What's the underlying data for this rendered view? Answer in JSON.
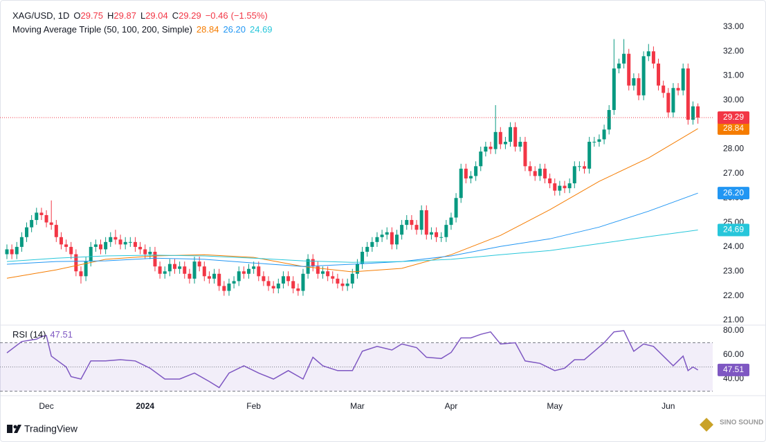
{
  "chart_data": {
    "type": "candlestick",
    "title": "XAG/USD, 1D",
    "ohlc_legend": [
      {
        "label": "O",
        "value": 29.75
      },
      {
        "label": "H",
        "value": 29.87
      },
      {
        "label": "L",
        "value": 29.04
      },
      {
        "label": "C",
        "value": 29.29
      }
    ],
    "change": {
      "value": -0.46,
      "label": "−0.46"
    },
    "change_percent": {
      "value": -1.55,
      "label": "(−1.55%)"
    },
    "up_color": "#089981",
    "down_color": "#f23645",
    "open": [
      23.7,
      23.9,
      23.7,
      24.0,
      24.4,
      24.8,
      25.1,
      25.4,
      25.3,
      25.0,
      24.9,
      24.4,
      24.1,
      24.0,
      23.7,
      23.0,
      22.8,
      23.4,
      24.0,
      24.1,
      23.9,
      24.2,
      24.4,
      24.3,
      24.1,
      24.2,
      24.2,
      24.0,
      23.9,
      23.7,
      23.8,
      23.2,
      22.9,
      23.0,
      23.3,
      23.1,
      23.2,
      22.9,
      22.7,
      23.4,
      23.2,
      22.8,
      22.7,
      22.9,
      22.4,
      22.2,
      22.5,
      22.6,
      23.0,
      22.9,
      23.1,
      23.2,
      22.8,
      22.6,
      22.4,
      22.3,
      22.5,
      22.8,
      22.6,
      22.3,
      22.2,
      22.9,
      23.5,
      23.2,
      22.9,
      23.0,
      22.8,
      22.7,
      22.5,
      22.4,
      22.5,
      22.9,
      23.3,
      23.8,
      24.0,
      24.2,
      24.4,
      24.5,
      24.6,
      24.1,
      24.5,
      24.9,
      25.1,
      24.9,
      24.7,
      25.5,
      24.5,
      24.6,
      24.4,
      24.4,
      24.9,
      25.2,
      26.0,
      27.2,
      26.8,
      26.9,
      27.3,
      27.9,
      28.1,
      28.0,
      28.7,
      28.2,
      28.3,
      28.9,
      28.1,
      28.3,
      27.3,
      27.1,
      26.9,
      27.2,
      26.8,
      26.6,
      26.3,
      26.5,
      26.4,
      26.6,
      27.3,
      27.3,
      27.2,
      28.3,
      28.3,
      28.4,
      28.8,
      29.6,
      31.3,
      31.5,
      31.9,
      30.6,
      30.9,
      30.2,
      31.8,
      32.0,
      31.5,
      30.6,
      30.3,
      29.5,
      30.5,
      30.4,
      31.3,
      29.2,
      29.75
    ],
    "high": [
      24.1,
      24.1,
      24.2,
      24.6,
      25.0,
      25.3,
      25.6,
      25.6,
      25.5,
      25.9,
      25.1,
      24.6,
      24.3,
      24.2,
      23.9,
      23.2,
      23.6,
      24.2,
      24.3,
      24.3,
      24.4,
      24.6,
      24.7,
      24.5,
      24.4,
      24.4,
      24.4,
      24.2,
      24.1,
      24.0,
      24.0,
      23.4,
      23.2,
      23.5,
      23.5,
      23.4,
      23.4,
      23.1,
      23.6,
      23.6,
      23.4,
      23.0,
      23.1,
      23.1,
      22.6,
      22.7,
      22.8,
      23.2,
      23.2,
      23.3,
      23.4,
      23.4,
      23.0,
      22.8,
      22.6,
      22.7,
      23.0,
      23.0,
      22.8,
      22.5,
      23.1,
      23.7,
      23.7,
      23.4,
      23.2,
      23.2,
      23.0,
      22.9,
      22.7,
      22.7,
      23.1,
      23.5,
      24.0,
      24.2,
      24.4,
      24.6,
      24.7,
      24.8,
      24.8,
      24.7,
      25.1,
      25.3,
      25.3,
      25.1,
      25.7,
      25.7,
      24.8,
      24.8,
      24.6,
      25.1,
      25.4,
      26.2,
      27.4,
      27.4,
      27.1,
      27.5,
      28.1,
      28.3,
      28.3,
      29.8,
      28.9,
      28.5,
      29.1,
      29.1,
      28.5,
      28.5,
      27.5,
      27.3,
      27.4,
      27.4,
      27.0,
      26.8,
      26.7,
      26.7,
      26.8,
      27.5,
      27.5,
      27.5,
      28.5,
      28.5,
      28.6,
      29.0,
      29.8,
      32.5,
      31.7,
      32.5,
      32.1,
      31.1,
      31.1,
      32.0,
      32.3,
      32.2,
      31.7,
      30.8,
      30.5,
      30.7,
      30.7,
      31.5,
      31.5,
      29.95,
      29.87
    ],
    "low": [
      23.5,
      23.5,
      23.5,
      23.8,
      24.2,
      24.6,
      24.9,
      25.1,
      24.8,
      24.7,
      24.2,
      23.9,
      23.8,
      23.5,
      22.8,
      22.5,
      22.6,
      23.2,
      23.8,
      23.7,
      23.7,
      24.0,
      24.1,
      23.9,
      23.9,
      24.0,
      23.8,
      23.7,
      23.5,
      23.5,
      23.0,
      22.7,
      22.7,
      22.8,
      22.9,
      22.9,
      22.7,
      22.5,
      22.5,
      23.0,
      22.6,
      22.5,
      22.5,
      22.2,
      22.0,
      22.0,
      22.3,
      22.4,
      22.7,
      22.7,
      22.9,
      22.6,
      22.4,
      22.2,
      22.1,
      22.1,
      22.3,
      22.4,
      22.1,
      22.0,
      22.0,
      22.7,
      23.0,
      22.7,
      22.7,
      22.6,
      22.5,
      22.3,
      22.2,
      22.2,
      22.3,
      22.7,
      23.1,
      23.6,
      23.8,
      24.0,
      24.2,
      24.3,
      23.9,
      23.9,
      24.3,
      24.7,
      24.7,
      24.5,
      24.5,
      24.3,
      24.3,
      24.2,
      24.2,
      24.2,
      24.7,
      25.0,
      25.8,
      26.6,
      26.6,
      26.7,
      27.1,
      27.7,
      27.8,
      27.8,
      28.0,
      28.0,
      28.1,
      27.9,
      27.9,
      27.1,
      26.9,
      26.7,
      26.7,
      26.6,
      26.4,
      26.1,
      26.1,
      26.2,
      26.2,
      26.4,
      27.1,
      27.0,
      27.0,
      28.1,
      28.1,
      28.2,
      28.6,
      29.4,
      31.1,
      31.3,
      30.4,
      30.4,
      30.0,
      30.0,
      31.6,
      31.3,
      30.4,
      30.1,
      29.3,
      29.3,
      30.2,
      30.2,
      29.0,
      29.0,
      29.04
    ],
    "close": [
      23.9,
      23.7,
      24.0,
      24.4,
      24.8,
      25.1,
      25.4,
      25.3,
      25.0,
      24.9,
      24.4,
      24.1,
      24.0,
      23.7,
      23.0,
      22.8,
      23.4,
      24.0,
      24.1,
      23.9,
      24.2,
      24.4,
      24.3,
      24.1,
      24.2,
      24.2,
      24.0,
      23.9,
      23.7,
      23.8,
      23.2,
      22.9,
      23.0,
      23.3,
      23.1,
      23.2,
      22.9,
      22.7,
      23.4,
      23.2,
      22.8,
      22.7,
      22.9,
      22.4,
      22.2,
      22.5,
      22.6,
      23.0,
      22.9,
      23.1,
      23.2,
      22.8,
      22.6,
      22.4,
      22.3,
      22.5,
      22.8,
      22.6,
      22.3,
      22.2,
      22.9,
      23.5,
      23.2,
      22.9,
      23.0,
      22.8,
      22.7,
      22.5,
      22.4,
      22.5,
      22.9,
      23.3,
      23.8,
      24.0,
      24.2,
      24.4,
      24.5,
      24.6,
      24.1,
      24.5,
      24.9,
      25.1,
      24.9,
      24.7,
      25.5,
      24.5,
      24.6,
      24.4,
      24.4,
      24.9,
      25.2,
      26.0,
      27.2,
      26.8,
      26.9,
      27.3,
      27.9,
      28.1,
      28.0,
      28.7,
      28.2,
      28.3,
      28.9,
      28.1,
      28.3,
      27.3,
      27.1,
      26.9,
      27.2,
      26.8,
      26.6,
      26.3,
      26.5,
      26.4,
      26.6,
      27.3,
      27.3,
      27.2,
      28.3,
      28.3,
      28.4,
      28.8,
      29.6,
      31.3,
      31.5,
      31.9,
      30.6,
      30.9,
      30.2,
      31.8,
      32.0,
      31.5,
      30.6,
      30.3,
      29.5,
      30.5,
      30.4,
      31.3,
      29.2,
      29.75,
      29.29
    ],
    "last_price": {
      "value": 29.29,
      "color": "#f23645"
    },
    "xlim": [
      -1.4,
      143
    ],
    "xticks": [
      {
        "value": 8,
        "label": "Dec"
      },
      {
        "value": 28,
        "label": "2024"
      },
      {
        "value": 50,
        "label": "Feb"
      },
      {
        "value": 71,
        "label": "Mar"
      },
      {
        "value": 90,
        "label": "Apr"
      },
      {
        "value": 111,
        "label": "May"
      },
      {
        "value": 134,
        "label": "Jun"
      }
    ],
    "ylim": [
      20.8,
      34.1
    ],
    "yticks": [
      {
        "value": 21,
        "label": "21.00"
      },
      {
        "value": 22,
        "label": "22.00"
      },
      {
        "value": 23,
        "label": "23.00"
      },
      {
        "value": 24,
        "label": "24.00"
      },
      {
        "value": 25,
        "label": "25.00"
      },
      {
        "value": 26,
        "label": "26.00"
      },
      {
        "value": 27,
        "label": "27.00"
      },
      {
        "value": 28,
        "label": "28.00"
      },
      {
        "value": 29,
        "label": "29.00"
      },
      {
        "value": 30,
        "label": "30.00"
      },
      {
        "value": 31,
        "label": "31.00"
      },
      {
        "value": 32,
        "label": "32.00"
      },
      {
        "value": 33,
        "label": "33.00"
      }
    ],
    "ma": {
      "name": "Moving Average Triple (50, 100, 200, Simple)",
      "series": [
        {
          "color": "#f57c00",
          "x": [
            0,
            10,
            20,
            30,
            40,
            50,
            60,
            70,
            80,
            90,
            100,
            110,
            120,
            130,
            140
          ],
          "values": [
            22.72,
            23.06,
            23.49,
            23.63,
            23.68,
            23.57,
            23.2,
            22.98,
            23.12,
            23.68,
            24.47,
            25.52,
            26.68,
            27.64,
            28.84
          ],
          "last": 28.84
        },
        {
          "color": "#2196f3",
          "x": [
            0,
            10,
            20,
            30,
            40,
            50,
            60,
            70,
            80,
            90,
            100,
            110,
            120,
            130,
            140
          ],
          "values": [
            23.29,
            23.4,
            23.43,
            23.54,
            23.49,
            23.34,
            23.2,
            23.29,
            23.4,
            23.63,
            24.02,
            24.33,
            24.81,
            25.46,
            26.2
          ],
          "last": 26.2,
          "last_label": "26.20"
        },
        {
          "color": "#26c6da",
          "x": [
            0,
            10,
            20,
            30,
            40,
            50,
            60,
            70,
            80,
            90,
            100,
            110,
            120,
            130,
            140
          ],
          "values": [
            23.4,
            23.54,
            23.63,
            23.66,
            23.63,
            23.54,
            23.43,
            23.37,
            23.4,
            23.49,
            23.68,
            23.85,
            24.13,
            24.42,
            24.69
          ],
          "last": 24.69
        }
      ]
    },
    "rsi": {
      "name": "RSI (14)",
      "color": "#7e57c2",
      "x": [
        0,
        3,
        6,
        7,
        8,
        9,
        12,
        13,
        15,
        17,
        20,
        23,
        26,
        29,
        32,
        35,
        38,
        41,
        43,
        45,
        48,
        51,
        54,
        57,
        60,
        62,
        64,
        67,
        70,
        72,
        75,
        78,
        80,
        83,
        85,
        88,
        90,
        92,
        94,
        96,
        98,
        100,
        103,
        105,
        108,
        111,
        113,
        115,
        117,
        119,
        121,
        123,
        125,
        127,
        129,
        131,
        133,
        135,
        137,
        138,
        139,
        140
      ],
      "values": [
        61.7,
        71,
        73,
        75,
        76,
        59,
        50,
        42,
        40,
        55,
        55,
        56,
        55,
        49,
        40,
        40,
        45,
        38,
        33,
        45,
        51,
        45,
        40,
        47,
        40,
        58,
        51,
        47,
        47,
        63,
        67,
        64,
        69,
        66,
        58,
        57,
        62,
        74,
        74,
        77,
        79,
        69,
        70,
        55,
        53,
        47,
        49,
        56,
        56,
        63,
        70,
        79,
        80,
        63,
        69,
        67,
        59,
        51,
        59,
        47,
        50,
        47.51
      ],
      "last": 47.51,
      "ylim": [
        26.3,
        84.6
      ],
      "yticks": [
        {
          "value": 40,
          "label": "40.00"
        },
        {
          "value": 60,
          "label": "60.00"
        },
        {
          "value": 80,
          "label": "80.00"
        }
      ],
      "band_upper": 70,
      "band_middle": 50,
      "band_lower": 30
    }
  },
  "footer": {
    "brand": "TradingView",
    "watermark": "SINO SOUND"
  }
}
